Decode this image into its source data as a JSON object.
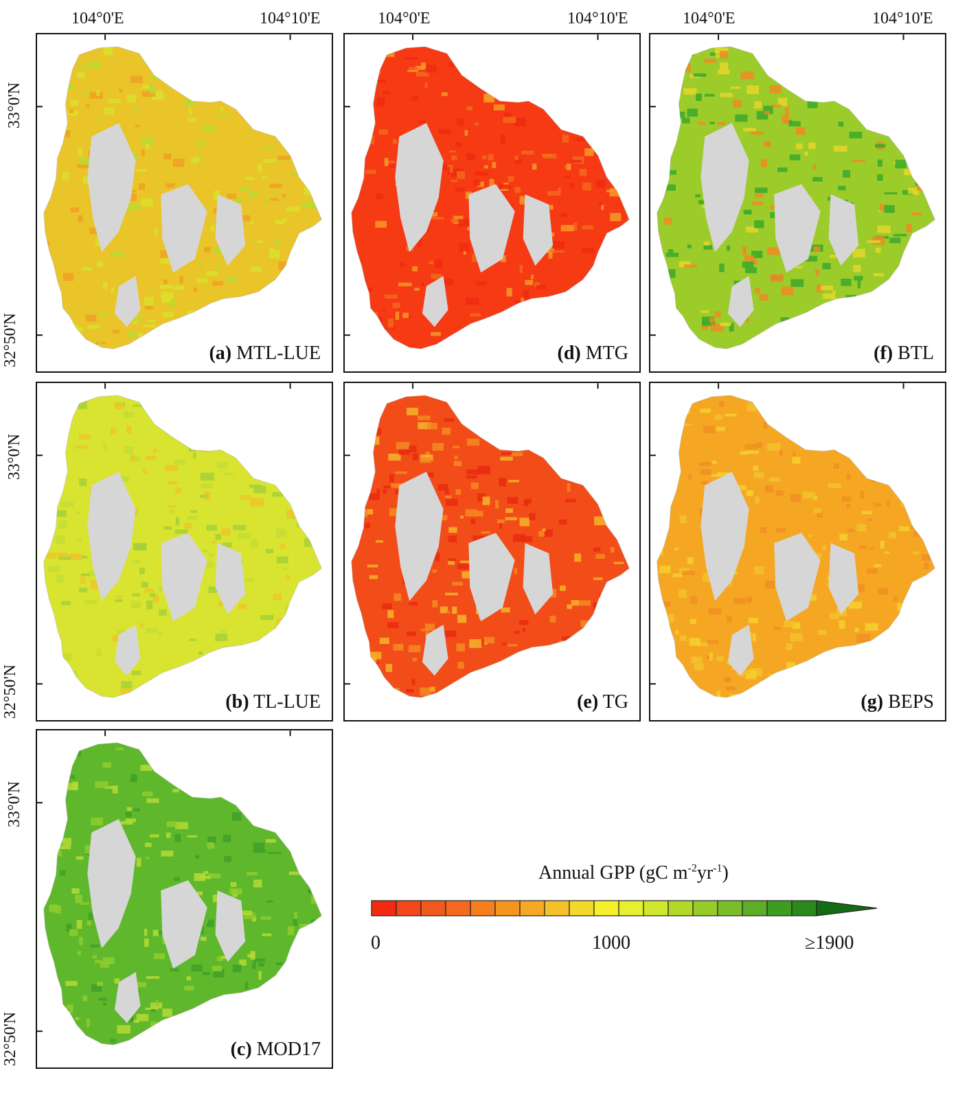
{
  "longitude_labels": {
    "left": "104°0'E",
    "right": "104°10'E"
  },
  "latitude_labels": {
    "north": "33°0'N",
    "south": "32°50'N"
  },
  "panels": [
    {
      "id": "a",
      "letter": "(a)",
      "name": "MTL-LUE",
      "palette": [
        "#e9c52a",
        "#d9e02a",
        "#b9d933",
        "#f0a024"
      ]
    },
    {
      "id": "d",
      "letter": "(d)",
      "name": "MTG",
      "palette": [
        "#f53a14",
        "#f26a1c",
        "#f59a24",
        "#ee2a10"
      ]
    },
    {
      "id": "f",
      "letter": "(f)",
      "name": "BTL",
      "palette": [
        "#9bcc2a",
        "#f08a24",
        "#3ca82a",
        "#e6d52a"
      ]
    },
    {
      "id": "b",
      "letter": "(b)",
      "name": "TL-LUE",
      "palette": [
        "#d8e42f",
        "#c6dd35",
        "#eec62a",
        "#a6d03a"
      ]
    },
    {
      "id": "e",
      "letter": "(e)",
      "name": "TG",
      "palette": [
        "#f24c18",
        "#f58a22",
        "#f5b42a",
        "#ea2a10"
      ]
    },
    {
      "id": "g",
      "letter": "(g)",
      "name": "BEPS",
      "palette": [
        "#f5a724",
        "#f2c22a",
        "#f08f22",
        "#f5d02c"
      ]
    },
    {
      "id": "c",
      "letter": "(c)",
      "name": "MOD17",
      "palette": [
        "#5fb82c",
        "#8fcc2e",
        "#3ea028",
        "#b6d936"
      ]
    }
  ],
  "colorbar": {
    "title_main": "Annual GPP (gC m",
    "title_sup1": "-2",
    "title_mid": "yr",
    "title_sup2": "-1",
    "title_end": ")",
    "tick_min": "0",
    "tick_mid": "1000",
    "tick_max": "≥1900",
    "colors": [
      "#f22a10",
      "#f2481a",
      "#f05a1e",
      "#f56a1e",
      "#f57e1e",
      "#f5941e",
      "#f7a824",
      "#f5c22a",
      "#f2d92a",
      "#f5f02a",
      "#e6f02e",
      "#cfe72e",
      "#b2d82a",
      "#96cb2a",
      "#7abf2a",
      "#5cae26",
      "#3e9c20",
      "#2a8a1c"
    ],
    "arrow_color": "#136c14",
    "nodata_color": "#d6d6d6"
  }
}
